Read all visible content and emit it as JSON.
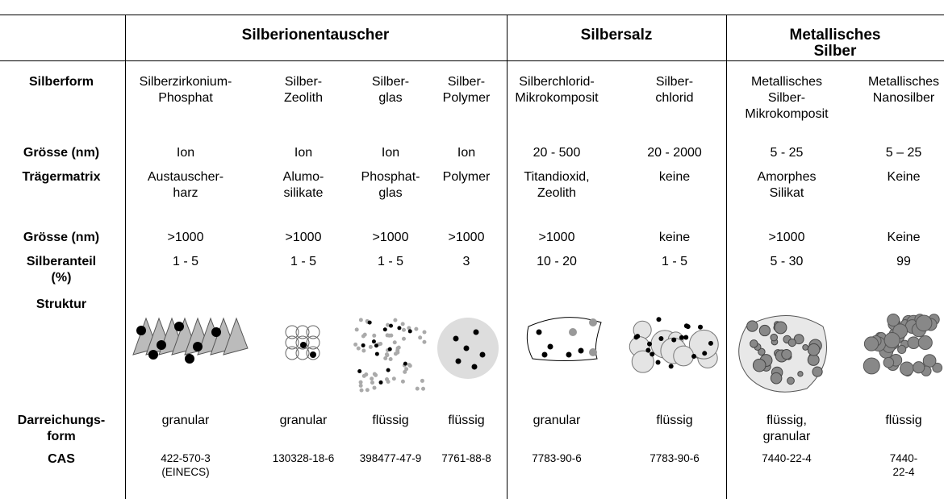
{
  "header": {
    "groups": [
      "Silberionentauscher",
      "Silbersalz",
      "Metallisches Silber"
    ]
  },
  "rows": [
    {
      "label": "Silberform",
      "cells": [
        "Silberzirkonium-\nPhosphat",
        "Silber-\nZeolith",
        "Silber-\nglas",
        "Silber-\nPolymer",
        "Silberchlorid-\nMikrokomposit",
        "Silber-\nchlorid",
        "Metallisches\nSilber-\nMikrokomposit",
        "Metallisches\nNanosilber"
      ]
    },
    {
      "label": "Grösse (nm)",
      "cells": [
        "Ion",
        "Ion",
        "Ion",
        "Ion",
        "20 - 500",
        "20 - 2000",
        "5 - 25",
        "5 – 25"
      ]
    },
    {
      "label": "Trägermatrix",
      "cells": [
        "Austauscher-\nharz",
        "Alumo-\nsilikate",
        "Phosphat-\nglas",
        "Polymer",
        "Titandioxid,\nZeolith",
        "keine",
        "Amorphes\nSilikat",
        "Keine"
      ]
    },
    {
      "label": "Grösse (nm)",
      "cells": [
        ">1000",
        ">1000",
        ">1000",
        ">1000",
        ">1000",
        "keine",
        ">1000",
        "Keine"
      ]
    },
    {
      "label": "Silberanteil\n(%)",
      "cells": [
        "1 - 5",
        "1 - 5",
        "1 - 5",
        "3",
        "10 - 20",
        "1 - 5",
        "5 - 30",
        "99"
      ]
    },
    {
      "label": "Struktur"
    },
    {
      "label": "Darreichungs-\nform",
      "cells": [
        "granular",
        "granular",
        "flüssig",
        "flüssig",
        "granular",
        "flüssig",
        "flüssig,\ngranular",
        "flüssig"
      ]
    },
    {
      "label": "CAS",
      "cells": [
        "422-570-3\n(EINECS)",
        "130328-18-6",
        "398477-47-9",
        "7761-88-8",
        "7783-90-6",
        "7783-90-6",
        "7440-22-4",
        "7440-22-4"
      ]
    }
  ]
}
